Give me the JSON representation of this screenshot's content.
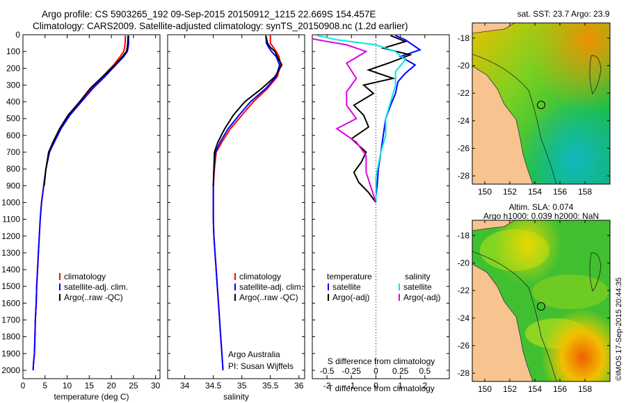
{
  "header": {
    "line1": "Argo profile: CS 5903265_192 09-Sep-2015 20150912_1215 22.669S 154.457E",
    "line2": "Climatology: CARS2009. Satellite-adjusted climatology: synTS_20150908.nc (1.2d earlier)"
  },
  "colors": {
    "climatology": "#ff0000",
    "satellite": "#0000ff",
    "argo": "#000000",
    "sal_sat": "#00e5e5",
    "sal_argo": "#e000e0"
  },
  "chart_data": [
    {
      "type": "line",
      "id": "temperature",
      "xlabel": "temperature (deg C)",
      "xlim": [
        0,
        31
      ],
      "ylim": [
        2050,
        0
      ],
      "xticks": [
        0,
        5,
        10,
        15,
        20,
        25,
        30
      ],
      "yticks": [
        0,
        100,
        200,
        300,
        400,
        500,
        600,
        700,
        800,
        900,
        1000,
        1100,
        1200,
        1300,
        1400,
        1500,
        1600,
        1700,
        1800,
        1900,
        2000
      ],
      "legend": [
        "climatology",
        "satellite-adj. clim.",
        "Argo(..raw -QC)"
      ],
      "series": [
        {
          "name": "climatology",
          "color": "#ff0000",
          "x": [
            23.2,
            23.1,
            23.0,
            22.8,
            22.0,
            20.5,
            18.0,
            15.5,
            13.0,
            10.5,
            8.5,
            7.0,
            6.0,
            5.2,
            4.7,
            4.2,
            3.9,
            3.7,
            3.5,
            3.3,
            3.1,
            3.0,
            2.8,
            2.7,
            2.6,
            2.4,
            2.3
          ],
          "y": [
            5,
            50,
            75,
            100,
            130,
            180,
            250,
            320,
            400,
            480,
            560,
            640,
            700,
            800,
            900,
            1000,
            1100,
            1200,
            1300,
            1400,
            1500,
            1600,
            1700,
            1800,
            1900,
            1950,
            2000
          ]
        },
        {
          "name": "satellite-adj. clim.",
          "color": "#0000ff",
          "x": [
            23.9,
            23.9,
            23.8,
            23.6,
            22.8,
            21.0,
            18.5,
            15.8,
            13.2,
            10.6,
            8.6,
            7.1,
            6.0,
            5.2,
            4.7,
            4.2,
            3.9,
            3.7,
            3.5,
            3.3,
            3.1,
            3.0,
            2.8,
            2.7,
            2.6,
            2.4,
            2.3
          ],
          "y": [
            5,
            50,
            75,
            100,
            130,
            180,
            250,
            320,
            400,
            480,
            560,
            640,
            700,
            800,
            900,
            1000,
            1100,
            1200,
            1300,
            1400,
            1500,
            1600,
            1700,
            1800,
            1900,
            1950,
            2000
          ]
        },
        {
          "name": "Argo(..raw -QC)",
          "color": "#000000",
          "x": [
            23.8,
            23.7,
            23.6,
            23.4,
            22.5,
            20.8,
            18.0,
            15.2,
            12.8,
            10.2,
            8.3,
            6.8,
            5.8,
            5.2,
            4.8
          ],
          "y": [
            5,
            50,
            75,
            100,
            130,
            180,
            250,
            320,
            400,
            480,
            560,
            640,
            700,
            800,
            900
          ]
        }
      ]
    },
    {
      "type": "line",
      "id": "salinity",
      "xlabel": "salinity",
      "xlim": [
        33.7,
        36.1
      ],
      "ylim": [
        2050,
        0
      ],
      "xticks": [
        34,
        34.5,
        35,
        35.5,
        36
      ],
      "legend": [
        "climatology",
        "satellite-adj. clim.",
        "Argo(..raw -QC)"
      ],
      "series": [
        {
          "name": "climatology",
          "color": "#ff0000",
          "x": [
            35.5,
            35.5,
            35.55,
            35.6,
            35.65,
            35.68,
            35.62,
            35.45,
            35.2,
            35.0,
            34.8,
            34.65,
            34.55,
            34.52,
            34.5,
            34.5,
            34.5,
            34.51,
            34.53,
            34.55,
            34.57,
            34.59,
            34.61,
            34.63,
            34.65,
            34.66,
            34.67
          ],
          "y": [
            5,
            50,
            75,
            100,
            130,
            180,
            250,
            320,
            400,
            480,
            560,
            640,
            700,
            800,
            900,
            1000,
            1100,
            1200,
            1300,
            1400,
            1500,
            1600,
            1700,
            1800,
            1900,
            1950,
            2000
          ]
        },
        {
          "name": "satellite-adj. clim.",
          "color": "#0000ff",
          "x": [
            35.42,
            35.43,
            35.47,
            35.52,
            35.6,
            35.66,
            35.6,
            35.42,
            35.15,
            34.95,
            34.76,
            34.62,
            34.54,
            34.51,
            34.5,
            34.5,
            34.5,
            34.51,
            34.53,
            34.55,
            34.57,
            34.59,
            34.61,
            34.63,
            34.65,
            34.66,
            34.67
          ],
          "y": [
            5,
            50,
            75,
            100,
            130,
            180,
            250,
            320,
            400,
            480,
            560,
            640,
            700,
            800,
            900,
            1000,
            1100,
            1200,
            1300,
            1400,
            1500,
            1600,
            1700,
            1800,
            1900,
            1950,
            2000
          ]
        },
        {
          "name": "Argo(..raw -QC)",
          "color": "#000000",
          "x": [
            35.42,
            35.45,
            35.5,
            35.58,
            35.62,
            35.7,
            35.58,
            35.35,
            35.05,
            34.85,
            34.7,
            34.58,
            34.52,
            34.51,
            34.5
          ],
          "y": [
            5,
            50,
            75,
            100,
            130,
            180,
            250,
            320,
            400,
            480,
            560,
            640,
            700,
            800,
            900
          ]
        }
      ],
      "credit": [
        "Argo Australia",
        "PI: Susan Wijffels"
      ]
    },
    {
      "type": "line",
      "id": "difference",
      "xlabel_bottom": "T difference from climatology",
      "xlabel_top": "S difference from climatology",
      "xlim": [
        -2.6,
        3.0
      ],
      "ylim": [
        2050,
        0
      ],
      "xticks_bottom": [
        -2,
        -1,
        0,
        1,
        2
      ],
      "xticks_top": [
        -0.5,
        -0.25,
        0,
        0.25,
        0.5
      ],
      "legend_left_title": "temperature",
      "legend_left": [
        "satellite",
        "Argo(-adj)"
      ],
      "legend_right_title": "salinity",
      "legend_right": [
        "satellite",
        "Argo(-adj)"
      ],
      "series": [
        {
          "name": "satellite",
          "group": "temperature",
          "color": "#0000ff",
          "x": [
            0.8,
            1.2,
            1.5,
            1.8,
            1.0,
            1.6,
            1.2,
            0.9,
            0.8,
            0.6,
            0.4,
            0.3,
            0.2,
            0.1,
            0.05,
            0.0,
            0.0
          ],
          "y": [
            5,
            30,
            60,
            90,
            130,
            180,
            230,
            280,
            350,
            420,
            500,
            600,
            700,
            800,
            900,
            960,
            1000
          ]
        },
        {
          "name": "Argo(-adj)",
          "group": "temperature",
          "color": "#000000",
          "x": [
            0.6,
            1.2,
            0.3,
            1.4,
            0.5,
            -0.3,
            0.7,
            -0.5,
            -0.1,
            -0.9,
            -0.5,
            -0.3,
            -1.0,
            -0.4,
            -0.6,
            -0.9,
            -0.7,
            -0.3,
            0.0
          ],
          "y": [
            5,
            40,
            80,
            120,
            170,
            210,
            260,
            300,
            350,
            420,
            480,
            550,
            620,
            700,
            760,
            820,
            880,
            940,
            1000
          ]
        },
        {
          "name": "satellite",
          "group": "salinity",
          "color": "#00e5e5",
          "x": [
            -0.6,
            -0.4,
            0.0,
            0.2,
            0.3,
            0.2,
            0.2,
            0.15,
            0.1,
            0.1,
            0.05,
            0.0,
            0.0
          ],
          "y": [
            5,
            30,
            60,
            100,
            150,
            220,
            300,
            400,
            500,
            600,
            700,
            850,
            1000
          ]
        },
        {
          "name": "Argo(-adj)",
          "group": "salinity",
          "color": "#e000e0",
          "x": [
            -0.8,
            -0.6,
            -0.3,
            -0.1,
            -0.3,
            -0.2,
            -0.3,
            -0.3,
            -0.2,
            -0.4,
            -0.2,
            -0.1,
            -0.1,
            0.0
          ],
          "y": [
            5,
            30,
            60,
            100,
            170,
            260,
            340,
            420,
            500,
            560,
            640,
            720,
            820,
            1000
          ]
        }
      ]
    },
    {
      "type": "heatmap",
      "id": "sst_map",
      "title": "sat. SST: 23.7 Argo: 23.9",
      "xlim": [
        149,
        160
      ],
      "ylim": [
        -28.6,
        -16.9
      ],
      "xticks": [
        150,
        152,
        154,
        156,
        158
      ],
      "yticks": [
        -18,
        -20,
        -22,
        -24,
        -26,
        -28
      ],
      "argo_position": [
        154.457,
        -22.669
      ]
    },
    {
      "type": "heatmap",
      "id": "sla_map",
      "title_lines": [
        "Altim. SLA: 0.074",
        "Argo h1000: 0.039 h2000: NaN"
      ],
      "xlim": [
        149,
        160
      ],
      "ylim": [
        -28.6,
        -16.9
      ],
      "xticks": [
        150,
        152,
        154,
        156,
        158
      ],
      "yticks": [
        -18,
        -20,
        -22,
        -24,
        -26,
        -28
      ],
      "argo_position": [
        154.457,
        -22.669
      ]
    }
  ],
  "side_stamp": "©IMOS 17-Sep-2015 20:44:35"
}
